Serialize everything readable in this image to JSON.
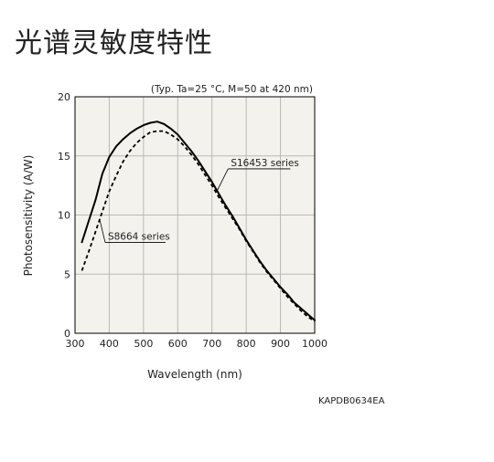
{
  "page": {
    "title": "光谱灵敏度特性"
  },
  "chart_data": {
    "type": "line",
    "subtitle": "(Typ. Ta=25 °C, M=50 at 420 nm)",
    "xlabel": "Wavelength (nm)",
    "ylabel": "Photosensitivity (A/W)",
    "xlim": [
      300,
      1000
    ],
    "ylim": [
      0,
      20
    ],
    "xticks": [
      300,
      400,
      500,
      600,
      700,
      800,
      900,
      1000
    ],
    "yticks": [
      0,
      5,
      10,
      15,
      20
    ],
    "grid": true,
    "code": "KAPDB0634EA",
    "series": [
      {
        "name": "S16453 series",
        "style": "solid",
        "color": "#000000",
        "x": [
          320,
          340,
          360,
          380,
          400,
          420,
          440,
          460,
          480,
          500,
          520,
          540,
          560,
          580,
          600,
          620,
          640,
          660,
          680,
          700,
          720,
          740,
          760,
          780,
          800,
          820,
          840,
          860,
          880,
          900,
          920,
          940,
          960,
          980,
          1000
        ],
        "y": [
          7.7,
          9.5,
          11.3,
          13.5,
          14.9,
          15.8,
          16.4,
          16.9,
          17.3,
          17.6,
          17.8,
          17.9,
          17.7,
          17.3,
          16.8,
          16.1,
          15.4,
          14.6,
          13.7,
          12.8,
          11.8,
          10.8,
          9.9,
          8.9,
          7.9,
          7.0,
          6.1,
          5.3,
          4.6,
          3.9,
          3.3,
          2.6,
          2.1,
          1.6,
          1.1
        ]
      },
      {
        "name": "S8664 series",
        "style": "dashed",
        "color": "#000000",
        "x": [
          320,
          340,
          360,
          380,
          400,
          420,
          440,
          460,
          480,
          500,
          520,
          540,
          560,
          580,
          600,
          620,
          640,
          660,
          680,
          700,
          720,
          740,
          760,
          780,
          800,
          820,
          840,
          860,
          880,
          900,
          920,
          940,
          960,
          980,
          1000
        ],
        "y": [
          5.3,
          6.9,
          8.6,
          10.3,
          12.0,
          13.3,
          14.5,
          15.4,
          16.1,
          16.6,
          17.0,
          17.1,
          17.1,
          16.8,
          16.4,
          15.8,
          15.1,
          14.3,
          13.4,
          12.5,
          11.5,
          10.6,
          9.7,
          8.8,
          7.8,
          6.9,
          6.0,
          5.2,
          4.5,
          3.8,
          3.1,
          2.5,
          1.9,
          1.4,
          1.0
        ]
      }
    ],
    "annotations": [
      {
        "text": "S16453 series",
        "series": 0,
        "at_x": 715
      },
      {
        "text": "S8664 series",
        "series": 1,
        "at_x": 372
      }
    ]
  }
}
